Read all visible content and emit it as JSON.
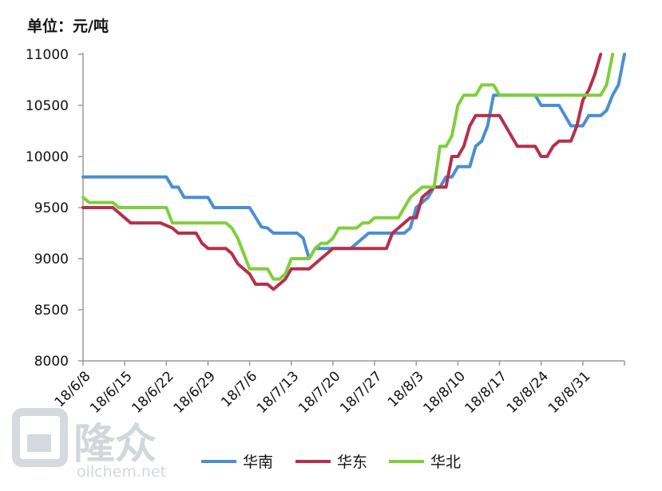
{
  "chart_data": {
    "type": "line",
    "unit_label": "单位：元/吨",
    "ylim": [
      8000,
      11000
    ],
    "yticks": [
      8000,
      8500,
      9000,
      9500,
      10000,
      10500,
      11000
    ],
    "xticks": [
      "18/6/8",
      "18/6/15",
      "18/6/22",
      "18/6/29",
      "18/7/6",
      "18/7/13",
      "18/7/20",
      "18/7/27",
      "18/8/3",
      "18/8/10",
      "18/8/17",
      "18/8/24",
      "18/8/31"
    ],
    "grid": false,
    "legend_position": "bottom",
    "series": [
      {
        "name": "华南",
        "color": "#4a8fd4",
        "points": [
          [
            0,
            9800
          ],
          [
            14,
            9800
          ],
          [
            15,
            9700
          ],
          [
            16,
            9700
          ],
          [
            17,
            9600
          ],
          [
            21,
            9600
          ],
          [
            22,
            9500
          ],
          [
            28,
            9500
          ],
          [
            30,
            9310
          ],
          [
            31,
            9300
          ],
          [
            32,
            9250
          ],
          [
            36,
            9250
          ],
          [
            37,
            9200
          ],
          [
            38,
            9000
          ],
          [
            39,
            9100
          ],
          [
            45,
            9100
          ],
          [
            47,
            9200
          ],
          [
            48,
            9250
          ],
          [
            54,
            9250
          ],
          [
            55,
            9300
          ],
          [
            56,
            9500
          ],
          [
            57,
            9550
          ],
          [
            58,
            9600
          ],
          [
            59,
            9700
          ],
          [
            60,
            9700
          ],
          [
            61,
            9800
          ],
          [
            62,
            9800
          ],
          [
            63,
            9900
          ],
          [
            65,
            9900
          ],
          [
            66,
            10100
          ],
          [
            67,
            10150
          ],
          [
            68,
            10300
          ],
          [
            69,
            10600
          ],
          [
            75,
            10600
          ],
          [
            76,
            10600
          ],
          [
            77,
            10500
          ],
          [
            80,
            10500
          ],
          [
            81,
            10400
          ],
          [
            82,
            10300
          ],
          [
            84,
            10300
          ],
          [
            85,
            10400
          ],
          [
            87,
            10400
          ],
          [
            88,
            10450
          ],
          [
            89,
            10600
          ],
          [
            90,
            10700
          ],
          [
            91,
            11000
          ]
        ]
      },
      {
        "name": "华东",
        "color": "#b5304a",
        "points": [
          [
            0,
            9500
          ],
          [
            5,
            9500
          ],
          [
            7,
            9400
          ],
          [
            8,
            9350
          ],
          [
            13,
            9350
          ],
          [
            15,
            9300
          ],
          [
            16,
            9250
          ],
          [
            19,
            9250
          ],
          [
            20,
            9150
          ],
          [
            21,
            9100
          ],
          [
            24,
            9100
          ],
          [
            25,
            9050
          ],
          [
            26,
            8950
          ],
          [
            28,
            8850
          ],
          [
            29,
            8750
          ],
          [
            31,
            8750
          ],
          [
            32,
            8700
          ],
          [
            33,
            8750
          ],
          [
            34,
            8800
          ],
          [
            35,
            8900
          ],
          [
            38,
            8900
          ],
          [
            40,
            9000
          ],
          [
            41,
            9050
          ],
          [
            42,
            9100
          ],
          [
            51,
            9100
          ],
          [
            52,
            9250
          ],
          [
            53,
            9300
          ],
          [
            54,
            9350
          ],
          [
            55,
            9400
          ],
          [
            56,
            9400
          ],
          [
            57,
            9600
          ],
          [
            58,
            9650
          ],
          [
            59,
            9700
          ],
          [
            61,
            9700
          ],
          [
            62,
            10000
          ],
          [
            63,
            10000
          ],
          [
            64,
            10100
          ],
          [
            65,
            10300
          ],
          [
            66,
            10400
          ],
          [
            70,
            10400
          ],
          [
            71,
            10300
          ],
          [
            72,
            10200
          ],
          [
            73,
            10100
          ],
          [
            76,
            10100
          ],
          [
            77,
            10000
          ],
          [
            78,
            10000
          ],
          [
            79,
            10100
          ],
          [
            80,
            10150
          ],
          [
            82,
            10150
          ],
          [
            83,
            10300
          ],
          [
            84,
            10550
          ],
          [
            85,
            10650
          ],
          [
            86,
            10800
          ],
          [
            87,
            11000
          ]
        ]
      },
      {
        "name": "华北",
        "color": "#7fcf3c",
        "points": [
          [
            0,
            9600
          ],
          [
            1,
            9550
          ],
          [
            5,
            9550
          ],
          [
            6,
            9500
          ],
          [
            14,
            9500
          ],
          [
            15,
            9350
          ],
          [
            24,
            9350
          ],
          [
            25,
            9300
          ],
          [
            26,
            9200
          ],
          [
            27,
            9050
          ],
          [
            28,
            8900
          ],
          [
            31,
            8900
          ],
          [
            32,
            8800
          ],
          [
            33,
            8800
          ],
          [
            34,
            8850
          ],
          [
            35,
            9000
          ],
          [
            38,
            9000
          ],
          [
            39,
            9100
          ],
          [
            40,
            9150
          ],
          [
            41,
            9150
          ],
          [
            42,
            9200
          ],
          [
            43,
            9300
          ],
          [
            46,
            9300
          ],
          [
            47,
            9350
          ],
          [
            48,
            9350
          ],
          [
            49,
            9400
          ],
          [
            52,
            9400
          ],
          [
            53,
            9400
          ],
          [
            54,
            9500
          ],
          [
            55,
            9600
          ],
          [
            56,
            9650
          ],
          [
            57,
            9700
          ],
          [
            59,
            9700
          ],
          [
            60,
            10100
          ],
          [
            61,
            10100
          ],
          [
            62,
            10200
          ],
          [
            63,
            10500
          ],
          [
            64,
            10600
          ],
          [
            66,
            10600
          ],
          [
            67,
            10700
          ],
          [
            69,
            10700
          ],
          [
            70,
            10600
          ],
          [
            87,
            10600
          ],
          [
            88,
            10700
          ],
          [
            89,
            11000
          ]
        ]
      }
    ]
  },
  "watermark": {
    "brand": "隆众",
    "site": "oilchem.net"
  }
}
